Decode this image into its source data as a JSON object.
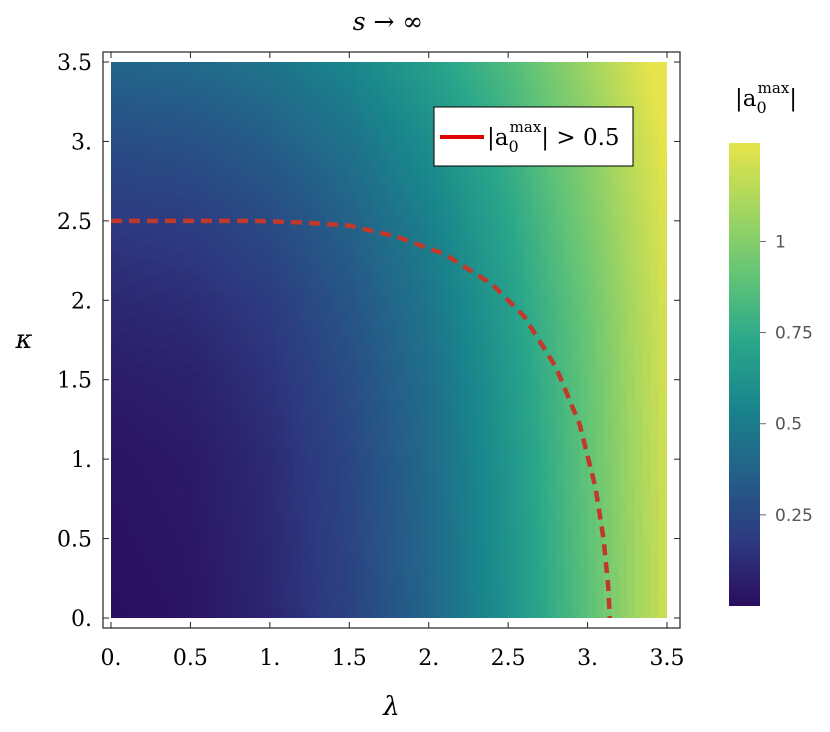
{
  "chart_data": {
    "type": "heatmap",
    "title": "s → ∞",
    "xlabel": "λ",
    "ylabel": "κ",
    "xlim": [
      0,
      3.5
    ],
    "ylim": [
      0,
      3.5
    ],
    "x_ticks": [
      {
        "value": 0,
        "label": "0."
      },
      {
        "value": 0.5,
        "label": "0.5"
      },
      {
        "value": 1,
        "label": "1."
      },
      {
        "value": 1.5,
        "label": "1.5"
      },
      {
        "value": 2,
        "label": "2."
      },
      {
        "value": 2.5,
        "label": "2.5"
      },
      {
        "value": 3,
        "label": "3."
      },
      {
        "value": 3.5,
        "label": "3.5"
      }
    ],
    "y_ticks": [
      {
        "value": 0,
        "label": "0."
      },
      {
        "value": 0.5,
        "label": "0.5"
      },
      {
        "value": 1,
        "label": "1."
      },
      {
        "value": 1.5,
        "label": "1.5"
      },
      {
        "value": 2,
        "label": "2."
      },
      {
        "value": 2.5,
        "label": "2.5"
      },
      {
        "value": 3,
        "label": "3."
      },
      {
        "value": 3.5,
        "label": "3.5"
      }
    ],
    "heatmap": {
      "x_values": [
        0,
        0.5,
        1,
        1.5,
        2,
        2.5,
        3,
        3.5
      ],
      "y_values": [
        0,
        0.5,
        1,
        1.5,
        2,
        2.5,
        3,
        3.5
      ],
      "z": [
        [
          0.01,
          0.03,
          0.1,
          0.22,
          0.39,
          0.61,
          0.88,
          1.2
        ],
        [
          0.02,
          0.04,
          0.11,
          0.23,
          0.4,
          0.62,
          0.89,
          1.2
        ],
        [
          0.03,
          0.05,
          0.12,
          0.24,
          0.41,
          0.63,
          0.9,
          1.21
        ],
        [
          0.06,
          0.08,
          0.15,
          0.27,
          0.43,
          0.65,
          0.91,
          1.22
        ],
        [
          0.11,
          0.13,
          0.19,
          0.31,
          0.47,
          0.68,
          0.93,
          1.23
        ],
        [
          0.18,
          0.2,
          0.26,
          0.37,
          0.52,
          0.72,
          0.97,
          1.25
        ],
        [
          0.27,
          0.29,
          0.35,
          0.45,
          0.59,
          0.78,
          1.01,
          1.28
        ],
        [
          0.39,
          0.41,
          0.46,
          0.55,
          0.68,
          0.85,
          1.07,
          1.33
        ]
      ]
    },
    "contour": {
      "name": "|a_0^max| > 0.5",
      "level": 0.5,
      "color": "#c0392b",
      "points": [
        [
          0.0,
          2.5
        ],
        [
          0.5,
          2.5
        ],
        [
          0.9,
          2.5
        ],
        [
          1.2,
          2.49
        ],
        [
          1.5,
          2.47
        ],
        [
          1.8,
          2.4
        ],
        [
          2.1,
          2.29
        ],
        [
          2.4,
          2.1
        ],
        [
          2.6,
          1.9
        ],
        [
          2.8,
          1.58
        ],
        [
          2.95,
          1.22
        ],
        [
          3.05,
          0.82
        ],
        [
          3.1,
          0.5
        ],
        [
          3.13,
          0.2
        ],
        [
          3.14,
          0.0
        ]
      ]
    },
    "legend": {
      "label_main": "|a",
      "label_sub": "0",
      "label_sup": "max",
      "label_tail": "| > 0.5",
      "position": "top-right",
      "line_color": "#e00000"
    },
    "colorbar": {
      "title_main": "|a",
      "title_sub": "0",
      "title_sup": "max",
      "title_tail": "|",
      "range": [
        0.0,
        1.27
      ],
      "ticks": [
        {
          "value": 0.25,
          "label": "0.25"
        },
        {
          "value": 0.5,
          "label": "0.5"
        },
        {
          "value": 0.75,
          "label": "0.75"
        },
        {
          "value": 1.0,
          "label": "1"
        }
      ]
    },
    "colormap": [
      "#2a0d5e",
      "#2d3a80",
      "#246089",
      "#19858c",
      "#2aa78a",
      "#62c476",
      "#a4d660",
      "#e6e44a"
    ],
    "grid": false
  }
}
